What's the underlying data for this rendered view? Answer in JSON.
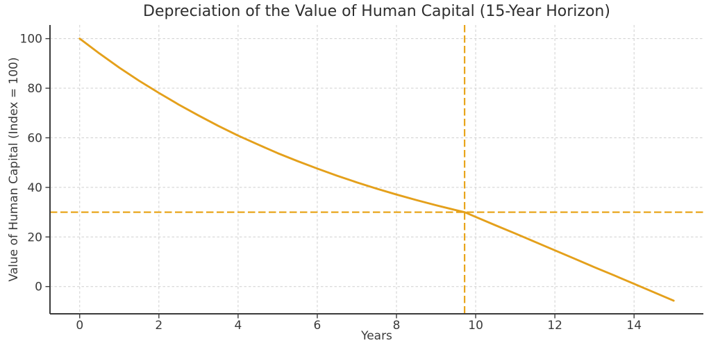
{
  "chart_data": {
    "type": "line",
    "title": "Depreciation of the Value of Human Capital (15-Year Horizon)",
    "xlabel": "Years",
    "ylabel": "Value of Human Capital (Index = 100)",
    "x": [
      0,
      0.5,
      1,
      1.5,
      2,
      2.5,
      3,
      3.5,
      4,
      4.5,
      5,
      5.5,
      6,
      6.5,
      7,
      7.5,
      8,
      8.5,
      9,
      9.5,
      9.72,
      10,
      10.5,
      11,
      11.5,
      12,
      12.5,
      13,
      13.5,
      14,
      14.5,
      15
    ],
    "y": [
      100,
      94.0,
      88.3,
      83.0,
      78.1,
      73.4,
      69.0,
      64.8,
      60.9,
      57.3,
      53.8,
      50.6,
      47.6,
      44.7,
      42.0,
      39.5,
      37.1,
      34.9,
      32.8,
      30.8,
      30.0,
      28.1,
      24.7,
      21.4,
      18.0,
      14.6,
      11.2,
      7.8,
      4.5,
      1.1,
      -2.3,
      -5.7
    ],
    "series_name": "Value of Human Capital",
    "reference_lines": {
      "horizontal_y": 30,
      "vertical_x": 9.72,
      "style": "dashed"
    },
    "xticks": [
      0,
      2,
      4,
      6,
      8,
      10,
      12,
      14
    ],
    "yticks": [
      0,
      20,
      40,
      60,
      80,
      100
    ],
    "xlim": [
      -0.75,
      15.75
    ],
    "ylim": [
      -11,
      105.5
    ],
    "grid": true,
    "grid_style": "dashed",
    "legend": "none",
    "colors": {
      "line": "#E4A01B",
      "reference": "#E8A51B",
      "grid": "#cfcfcf",
      "axis": "#3a3a3a",
      "tick_text": "#3a3a3a",
      "title_text": "#2e2e2e",
      "background": "#ffffff"
    }
  }
}
